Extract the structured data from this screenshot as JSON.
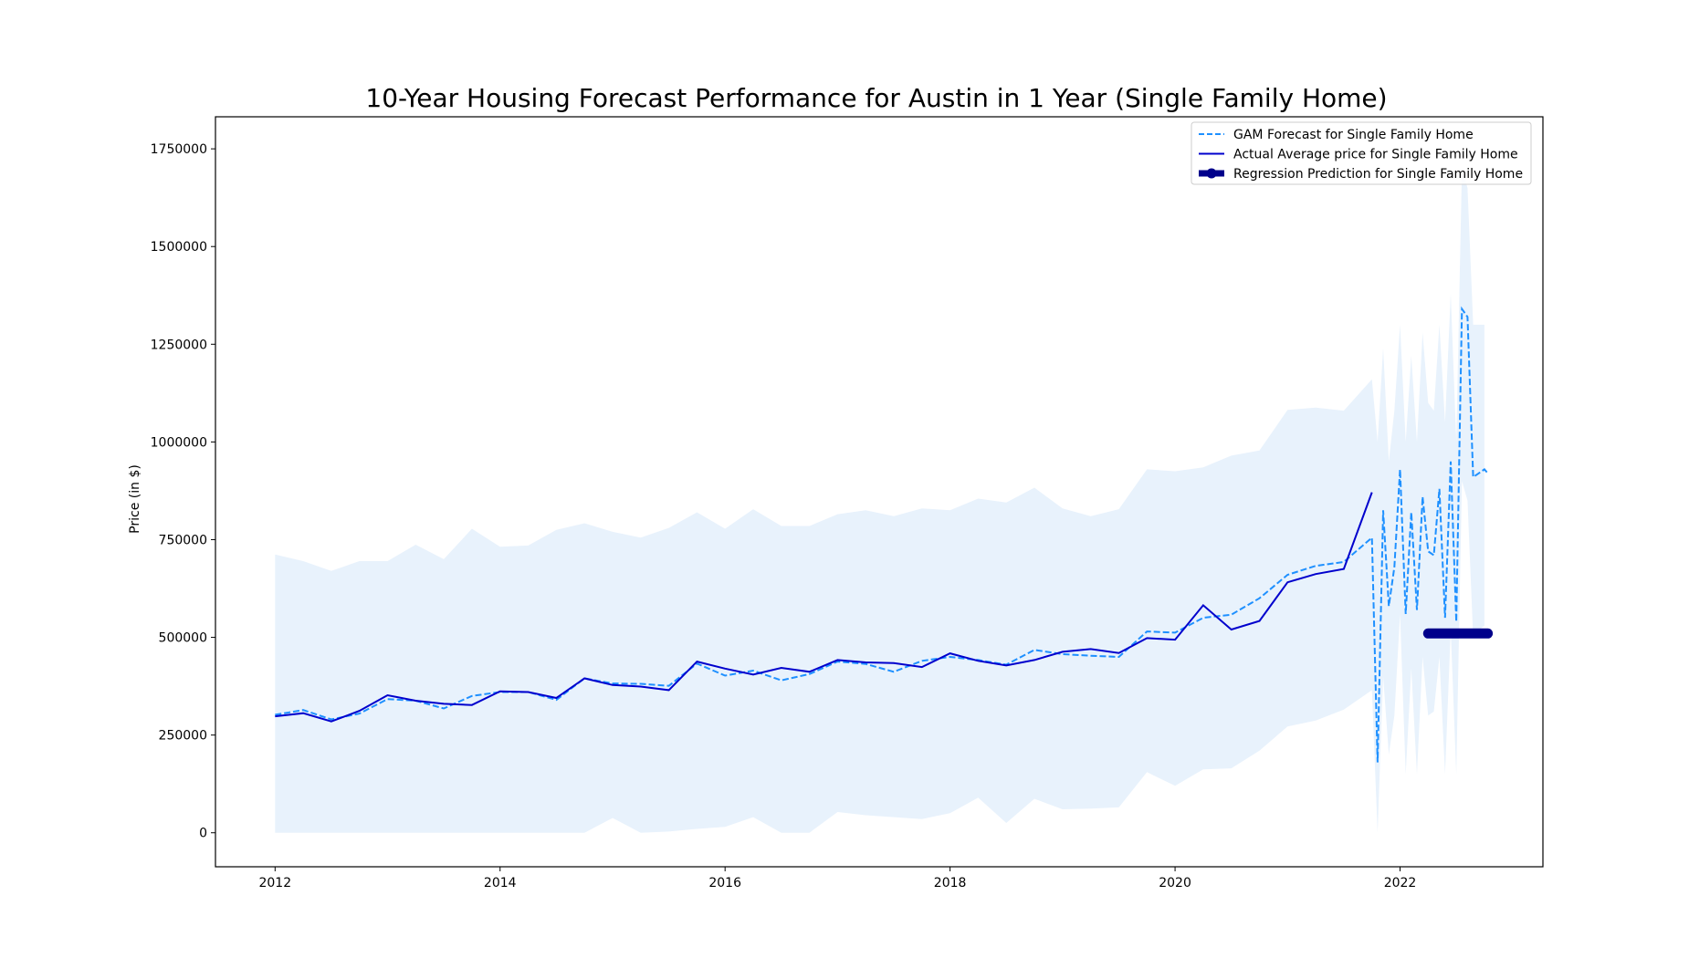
{
  "chart_data": {
    "type": "line",
    "title": "10-Year Housing Forecast Performance for Austin in 1 Year (Single Family Home)",
    "xlabel": "",
    "ylabel": "Price (in $)",
    "xlim": [
      2011.47,
      2023.27
    ],
    "ylim": [
      -87000,
      1832000
    ],
    "xticks": [
      2012,
      2014,
      2016,
      2018,
      2020,
      2022
    ],
    "yticks": [
      0,
      250000,
      500000,
      750000,
      1000000,
      1250000,
      1500000,
      1750000
    ],
    "grid": false,
    "legend_position": "top-right",
    "legend": [
      {
        "label": "GAM Forecast for Single Family Home",
        "color": "#1e90ff",
        "style": "dashed"
      },
      {
        "label": "Actual Average price for Single Family Home",
        "color": "#0000cd",
        "style": "solid"
      },
      {
        "label": "Regression Prediction for Single Family Home",
        "color": "#00008b",
        "style": "thick-marker"
      }
    ],
    "series": [
      {
        "name": "Actual Average price for Single Family Home",
        "color": "#0000cd",
        "x": [
          2012.0,
          2012.25,
          2012.5,
          2012.75,
          2013.0,
          2013.25,
          2013.5,
          2013.75,
          2014.0,
          2014.25,
          2014.5,
          2014.75,
          2015.0,
          2015.25,
          2015.5,
          2015.75,
          2016.0,
          2016.25,
          2016.5,
          2016.75,
          2017.0,
          2017.25,
          2017.5,
          2017.75,
          2018.0,
          2018.25,
          2018.5,
          2018.75,
          2019.0,
          2019.25,
          2019.5,
          2019.75,
          2020.0,
          2020.25,
          2020.5,
          2020.75,
          2021.0,
          2021.25,
          2021.5,
          2021.75
        ],
        "y": [
          298000,
          306000,
          285000,
          312000,
          352000,
          338000,
          330000,
          327000,
          362000,
          360000,
          345000,
          395000,
          378000,
          374000,
          365000,
          438000,
          420000,
          405000,
          422000,
          412000,
          442000,
          436000,
          434000,
          424000,
          459000,
          440000,
          428000,
          442000,
          463000,
          470000,
          460000,
          498000,
          494000,
          582000,
          520000,
          542000,
          641000,
          662000,
          675000,
          871000
        ]
      },
      {
        "name": "GAM Forecast for Single Family Home",
        "color": "#1e90ff",
        "x": [
          2012.0,
          2012.25,
          2012.5,
          2012.75,
          2013.0,
          2013.25,
          2013.5,
          2013.75,
          2014.0,
          2014.25,
          2014.5,
          2014.75,
          2015.0,
          2015.25,
          2015.5,
          2015.75,
          2016.0,
          2016.25,
          2016.5,
          2016.75,
          2017.0,
          2017.25,
          2017.5,
          2017.75,
          2018.0,
          2018.25,
          2018.5,
          2018.75,
          2019.0,
          2019.25,
          2019.5,
          2019.75,
          2020.0,
          2020.25,
          2020.5,
          2020.75,
          2021.0,
          2021.25,
          2021.5,
          2021.75,
          2021.8,
          2021.85,
          2021.9,
          2021.95,
          2022.0,
          2022.05,
          2022.1,
          2022.15,
          2022.2,
          2022.25,
          2022.3,
          2022.35,
          2022.4,
          2022.45,
          2022.5,
          2022.55,
          2022.6,
          2022.65,
          2022.7,
          2022.75,
          2022.78
        ],
        "y": [
          302000,
          314000,
          290000,
          305000,
          342000,
          338000,
          318000,
          350000,
          360000,
          360000,
          340000,
          395000,
          382000,
          381000,
          376000,
          433000,
          402000,
          415000,
          390000,
          406000,
          438000,
          432000,
          412000,
          440000,
          450000,
          442000,
          430000,
          468000,
          457000,
          453000,
          450000,
          515000,
          512000,
          550000,
          558000,
          600000,
          660000,
          683000,
          693000,
          755000,
          180000,
          825000,
          580000,
          680000,
          930000,
          560000,
          820000,
          570000,
          860000,
          720000,
          710000,
          880000,
          550000,
          950000,
          540000,
          1340000,
          1320000,
          910000,
          920000,
          930000,
          920000
        ]
      },
      {
        "name": "Regression Prediction for Single Family Home",
        "color": "#00008b",
        "x": [
          2022.25,
          2022.78
        ],
        "y": [
          510000,
          510000
        ]
      }
    ],
    "confidence_band": {
      "color": "#e8f2fc",
      "x": [
        2012.0,
        2012.25,
        2012.5,
        2012.75,
        2013.0,
        2013.25,
        2013.5,
        2013.75,
        2014.0,
        2014.25,
        2014.5,
        2014.75,
        2015.0,
        2015.25,
        2015.5,
        2015.75,
        2016.0,
        2016.25,
        2016.5,
        2016.75,
        2017.0,
        2017.25,
        2017.5,
        2017.75,
        2018.0,
        2018.25,
        2018.5,
        2018.75,
        2019.0,
        2019.25,
        2019.5,
        2019.75,
        2020.0,
        2020.25,
        2020.5,
        2020.75,
        2021.0,
        2021.25,
        2021.5,
        2021.75,
        2021.8,
        2021.85,
        2021.9,
        2021.95,
        2022.0,
        2022.05,
        2022.1,
        2022.15,
        2022.2,
        2022.25,
        2022.3,
        2022.35,
        2022.4,
        2022.45,
        2022.5,
        2022.55,
        2022.6,
        2022.65,
        2022.7,
        2022.75
      ],
      "upper": [
        712000,
        695000,
        670000,
        695000,
        695000,
        737000,
        700000,
        778000,
        732000,
        735000,
        775000,
        792000,
        770000,
        755000,
        780000,
        820000,
        778000,
        828000,
        785000,
        785000,
        815000,
        825000,
        810000,
        830000,
        825000,
        855000,
        845000,
        883000,
        830000,
        810000,
        828000,
        930000,
        925000,
        935000,
        965000,
        978000,
        1082000,
        1088000,
        1080000,
        1160000,
        1000000,
        1240000,
        950000,
        1080000,
        1300000,
        1000000,
        1220000,
        1000000,
        1280000,
        1100000,
        1080000,
        1300000,
        1050000,
        1380000,
        1000000,
        1700000,
        1650000,
        1300000,
        1300000,
        1300000
      ],
      "lower": [
        0,
        0,
        0,
        0,
        0,
        0,
        0,
        0,
        0,
        0,
        0,
        0,
        38000,
        0,
        3000,
        10000,
        15000,
        40000,
        0,
        0,
        53000,
        45000,
        40000,
        35000,
        50000,
        90000,
        25000,
        87000,
        60000,
        62000,
        65000,
        155000,
        120000,
        162000,
        165000,
        210000,
        272000,
        287000,
        315000,
        365000,
        0,
        400000,
        200000,
        300000,
        560000,
        150000,
        420000,
        150000,
        450000,
        300000,
        310000,
        450000,
        150000,
        520000,
        150000,
        900000,
        850000,
        500000,
        520000,
        530000
      ]
    }
  }
}
